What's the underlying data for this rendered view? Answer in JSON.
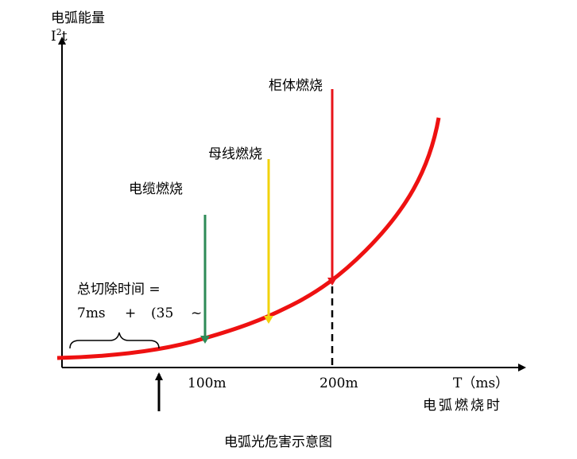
{
  "y_axis": {
    "title": "电弧能量",
    "symbol": {
      "base": "I",
      "sup": "2",
      "tail": "t"
    }
  },
  "x_axis": {
    "unit": "T（ms）",
    "title": "电弧燃烧时",
    "ticks": [
      "100m",
      "200m"
    ]
  },
  "events": [
    {
      "label": "电缆燃烧"
    },
    {
      "label": "母线燃烧"
    },
    {
      "label": "柜体燃烧"
    }
  ],
  "note": {
    "line1": "总切除时间 =",
    "line2": [
      "7ms",
      "+",
      "(35",
      "~"
    ]
  },
  "caption": "电弧光危害示意图"
}
